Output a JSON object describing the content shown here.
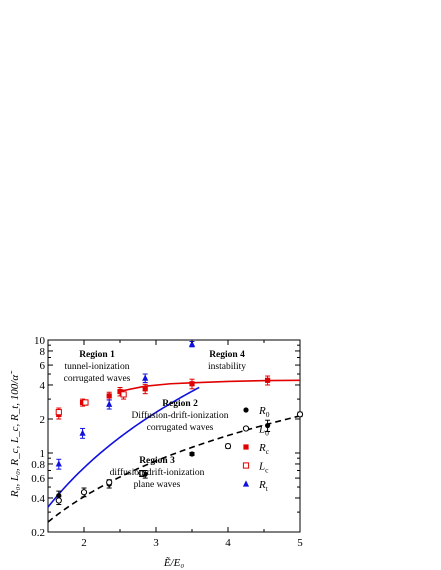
{
  "chart_data": {
    "type": "scatter",
    "title": "",
    "xlabel": "Ẽ/E₀",
    "ylabel": "R₀, L₀, R_c, L_c, R_t, 100/α̃",
    "xlim": [
      1.5,
      5.0
    ],
    "ylim": [
      0.2,
      10
    ],
    "yscale": "log",
    "grid": false,
    "legend_position": "right",
    "x_ticks": [
      2,
      3,
      4,
      5
    ],
    "y_ticks": [
      0.2,
      0.4,
      0.6,
      0.8,
      1,
      2,
      4,
      6,
      8,
      10
    ],
    "y_tick_labels": [
      "0.2",
      "0.4",
      "0.6",
      "0.8",
      "1",
      "2",
      "4",
      "6",
      "8",
      "10"
    ],
    "series": [
      {
        "name": "R0",
        "label_main": "R",
        "label_sub": "0",
        "marker": "filled-circle",
        "color": "#000000",
        "points": [
          {
            "x": 1.65,
            "y": 0.42,
            "err": 0.04
          },
          {
            "x": 2.35,
            "y": 0.53,
            "err": 0.04
          },
          {
            "x": 2.85,
            "y": 0.65,
            "err": 0.05
          },
          {
            "x": 3.5,
            "y": 0.98,
            "err": 0.03
          },
          {
            "x": 4.55,
            "y": 1.75,
            "err": 0.2
          }
        ]
      },
      {
        "name": "L0",
        "label_main": "L",
        "label_sub": "0",
        "marker": "open-circle",
        "color": "#000000",
        "points": [
          {
            "x": 1.65,
            "y": 0.38,
            "err": 0.03
          },
          {
            "x": 2.0,
            "y": 0.45,
            "err": 0.04
          },
          {
            "x": 2.35,
            "y": 0.55,
            "err": 0.03
          },
          {
            "x": 2.8,
            "y": 0.66,
            "err": 0.04
          },
          {
            "x": 4.0,
            "y": 1.15,
            "err": 0.05
          },
          {
            "x": 5.0,
            "y": 2.2,
            "err": 0.1
          }
        ]
      },
      {
        "name": "Rc",
        "label_main": "R",
        "label_sub": "c",
        "marker": "filled-square",
        "color": "#e00000",
        "points": [
          {
            "x": 1.65,
            "y": 2.2,
            "err": 0.2
          },
          {
            "x": 1.98,
            "y": 2.8,
            "err": 0.2
          },
          {
            "x": 2.35,
            "y": 3.2,
            "err": 0.25
          },
          {
            "x": 2.5,
            "y": 3.5,
            "err": 0.3
          },
          {
            "x": 2.85,
            "y": 3.7,
            "err": 0.35
          },
          {
            "x": 3.5,
            "y": 4.1,
            "err": 0.4
          },
          {
            "x": 4.55,
            "y": 4.4,
            "err": 0.4
          }
        ]
      },
      {
        "name": "Lc",
        "label_main": "L",
        "label_sub": "c",
        "marker": "open-square",
        "color": "#e00000",
        "points": [
          {
            "x": 1.65,
            "y": 2.3,
            "err": 0.2
          },
          {
            "x": 2.02,
            "y": 2.8,
            "err": 0.15
          },
          {
            "x": 2.55,
            "y": 3.3,
            "err": 0.3
          }
        ]
      },
      {
        "name": "Rt",
        "label_main": "R",
        "label_sub": "t",
        "marker": "filled-triangle",
        "color": "#1010e0",
        "points": [
          {
            "x": 1.65,
            "y": 0.8,
            "err": 0.08
          },
          {
            "x": 1.98,
            "y": 1.5,
            "err": 0.15
          },
          {
            "x": 2.35,
            "y": 2.7,
            "err": 0.25
          },
          {
            "x": 2.85,
            "y": 4.6,
            "err": 0.4
          },
          {
            "x": 3.5,
            "y": 9.2,
            "err": 0.5
          }
        ]
      }
    ],
    "fit_lines": [
      {
        "for": "R0/L0 fit",
        "style": "dashed",
        "color": "#000000",
        "a": 0.1183,
        "b": 1.7965,
        "x_range": [
          1.5,
          5.0
        ]
      },
      {
        "for": "Rt fit",
        "style": "solid",
        "color": "#1010e0",
        "a": 0.1074,
        "b": 2.7847,
        "x_range": [
          1.5,
          3.6
        ]
      },
      {
        "for": "Rc fit",
        "style": "solid",
        "color": "#e00000",
        "points": [
          [
            2.5,
            3.52
          ],
          [
            2.85,
            3.9
          ],
          [
            3.2,
            4.1
          ],
          [
            3.5,
            4.18
          ],
          [
            4.0,
            4.3
          ],
          [
            4.55,
            4.38
          ],
          [
            5.0,
            4.4
          ]
        ]
      }
    ],
    "annotations": [
      {
        "id": "region1",
        "title": "Region 1",
        "lines": [
          "tunnel-ionization",
          "corrugated waves"
        ]
      },
      {
        "id": "region2",
        "title": "Region 2",
        "lines": [
          "Diffusion-drift-ionization",
          "corrugated waves"
        ]
      },
      {
        "id": "region3",
        "title": "Region 3",
        "lines": [
          "diffusion-drift-ionization",
          "plane waves"
        ]
      },
      {
        "id": "region4",
        "title": "Region 4",
        "lines": [
          "instability"
        ]
      }
    ]
  }
}
